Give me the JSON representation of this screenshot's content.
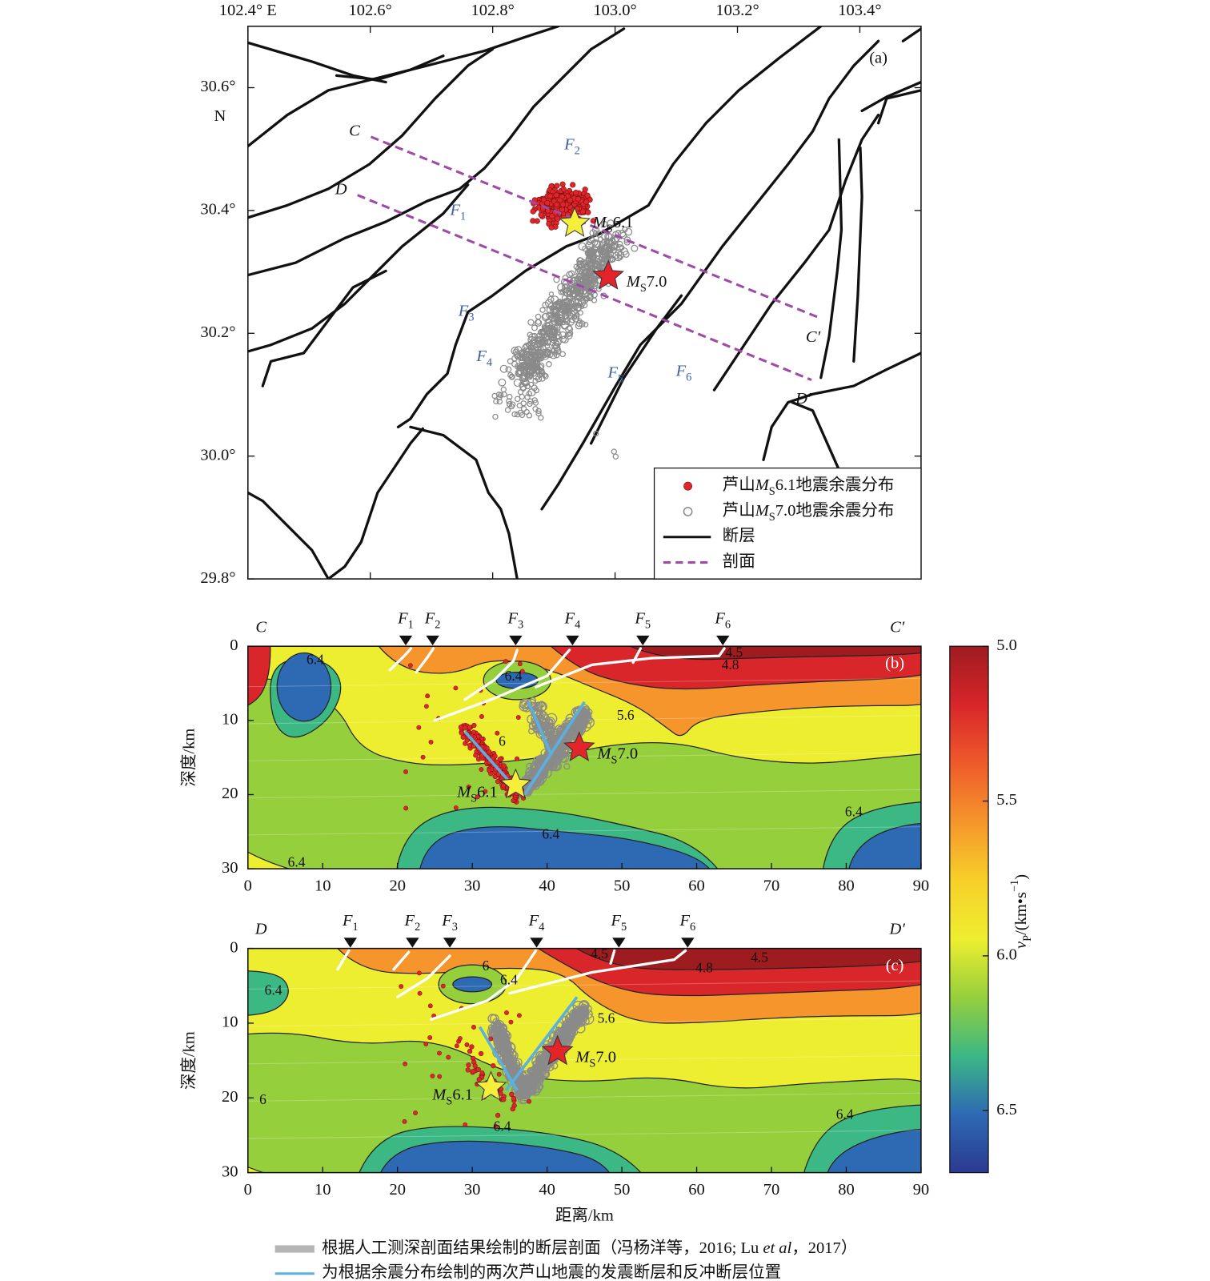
{
  "chart_data": [
    {
      "type": "map",
      "panel_label": "(a)",
      "xlim": [
        102.4,
        103.5
      ],
      "ylim": [
        29.8,
        30.7
      ],
      "xticks": [
        {
          "value": 102.4,
          "label": "102.4° E"
        },
        {
          "value": 102.6,
          "label": "102.6°"
        },
        {
          "value": 102.8,
          "label": "102.8°"
        },
        {
          "value": 103.0,
          "label": "103.0°"
        },
        {
          "value": 103.2,
          "label": "103.2°"
        },
        {
          "value": 103.4,
          "label": "103.4°"
        }
      ],
      "yticks": [
        {
          "value": 30.6,
          "label": "30.6°"
        },
        {
          "value": 30.4,
          "label": "30.4°"
        },
        {
          "value": 30.2,
          "label": "30.2°"
        },
        {
          "value": 30.0,
          "label": "30.0°"
        },
        {
          "value": 29.8,
          "label": "29.8°"
        }
      ],
      "lat_unit": "N",
      "profiles": [
        {
          "start_label": "C",
          "end_label": "C′",
          "lon": [
            102.601,
            103.337
          ],
          "lat": [
            30.52,
            30.224
          ],
          "color": "#a04aa8"
        },
        {
          "start_label": "D",
          "end_label": "D′",
          "lon": [
            102.579,
            103.321
          ],
          "lat": [
            30.425,
            30.124
          ],
          "color": "#a04aa8"
        }
      ],
      "fault_labels": [
        {
          "main": "F",
          "sub": "1"
        },
        {
          "main": "F",
          "sub": "2"
        },
        {
          "main": "F",
          "sub": "3"
        },
        {
          "main": "F",
          "sub": "4"
        },
        {
          "main": "F",
          "sub": "5"
        },
        {
          "main": "F",
          "sub": "6"
        }
      ],
      "events": [
        {
          "m": "M",
          "sub": "S",
          "mag": "6.1",
          "lon": 102.934,
          "lat": 30.379,
          "color": "#f5ee3a"
        },
        {
          "m": "M",
          "sub": "S",
          "mag": "7.0",
          "lon": 102.989,
          "lat": 30.293,
          "color": "#e3242b"
        }
      ],
      "legend": [
        {
          "prefix": "芦山",
          "m": "M",
          "sub": "S",
          "suffix": "6.1地震余震分布",
          "marker": "dot",
          "color": "#e0262a"
        },
        {
          "prefix": "芦山",
          "m": "M",
          "sub": "S",
          "suffix": "7.0地震余震分布",
          "marker": "circle",
          "color": "#8a8a8a"
        },
        {
          "label": "断层",
          "marker": "line",
          "color": "#111111"
        },
        {
          "label": "剖面",
          "marker": "dash",
          "color": "#a04aa8"
        }
      ]
    },
    {
      "type": "contour",
      "panel_label": "(b)",
      "start_label": "C",
      "end_label": "C′",
      "xlim": [
        0,
        90
      ],
      "ylim": [
        0,
        30
      ],
      "invert_y": true,
      "xticks": [
        0,
        10,
        20,
        30,
        40,
        50,
        60,
        70,
        80,
        90
      ],
      "yticks": [
        0,
        10,
        20,
        30
      ],
      "ylabel": "深度/km",
      "stations": [
        {
          "main": "F",
          "sub": "1",
          "x": 21.1
        },
        {
          "main": "F",
          "sub": "2",
          "x": 24.7
        },
        {
          "main": "F",
          "sub": "3",
          "x": 35.8
        },
        {
          "main": "F",
          "sub": "4",
          "x": 43.4
        },
        {
          "main": "F",
          "sub": "5",
          "x": 52.8
        },
        {
          "main": "F",
          "sub": "6",
          "x": 63.5
        }
      ],
      "events": [
        {
          "m": "M",
          "sub": "S",
          "mag": "6.1",
          "x": 35.8,
          "depth": 18.7,
          "color": "#f5ee3a"
        },
        {
          "m": "M",
          "sub": "S",
          "mag": "7.0",
          "x": 44.3,
          "depth": 13.7,
          "color": "#e3242b"
        }
      ],
      "contour_labels": [
        6.4,
        6.4,
        6,
        5.6,
        4.5,
        4.8,
        6.4,
        6.4,
        6.4
      ]
    },
    {
      "type": "contour",
      "panel_label": "(c)",
      "start_label": "D",
      "end_label": "D′",
      "xlim": [
        0,
        90
      ],
      "ylim": [
        0,
        30
      ],
      "invert_y": true,
      "xticks": [
        0,
        10,
        20,
        30,
        40,
        50,
        60,
        70,
        80,
        90
      ],
      "yticks": [
        0,
        10,
        20,
        30
      ],
      "ylabel": "深度/km",
      "xlabel": "距离/km",
      "stations": [
        {
          "main": "F",
          "sub": "1",
          "x": 13.7
        },
        {
          "main": "F",
          "sub": "2",
          "x": 22
        },
        {
          "main": "F",
          "sub": "3",
          "x": 27
        },
        {
          "main": "F",
          "sub": "4",
          "x": 38.6
        },
        {
          "main": "F",
          "sub": "5",
          "x": 49.6
        },
        {
          "main": "F",
          "sub": "6",
          "x": 58.8
        }
      ],
      "events": [
        {
          "m": "M",
          "sub": "S",
          "mag": "6.1",
          "x": 32.5,
          "depth": 18.6,
          "color": "#f5ee3a"
        },
        {
          "m": "M",
          "sub": "S",
          "mag": "7.0",
          "x": 41.4,
          "depth": 13.8,
          "color": "#e3242b"
        }
      ],
      "contour_labels": [
        6.4,
        6,
        6.4,
        4.5,
        4.8,
        4.5,
        5.6,
        6,
        6.4,
        6.4
      ]
    }
  ],
  "colorbar": {
    "label": {
      "v": "v",
      "sub": "P",
      "mid": "/(km•s",
      "sup": "−1",
      "end": ")"
    },
    "clim": [
      5.0,
      6.7
    ],
    "ticks": [
      {
        "value": 5.0,
        "label": "5.0"
      },
      5.5,
      {
        "value": 6.0,
        "label": "6.0"
      },
      6.5
    ],
    "colormap": [
      "#9e1b20",
      "#d8262a",
      "#ef5a2a",
      "#f5952c",
      "#f7cf2a",
      "#eeee30",
      "#96cf3c",
      "#3cb884",
      "#2e6ab4",
      "#2b3a90"
    ]
  },
  "footer": {
    "items": [
      {
        "color": "#b5b5b5",
        "before": "根据人工测深剖面结果绘制的断层剖面（冯杨洋等，2016; Lu ",
        "italic": "et al",
        "after": "，2017）"
      },
      {
        "color": "#5ab0e0",
        "text": "为根据余震分布绘制的两次芦山地震的发震断层和反冲断层位置"
      }
    ]
  }
}
